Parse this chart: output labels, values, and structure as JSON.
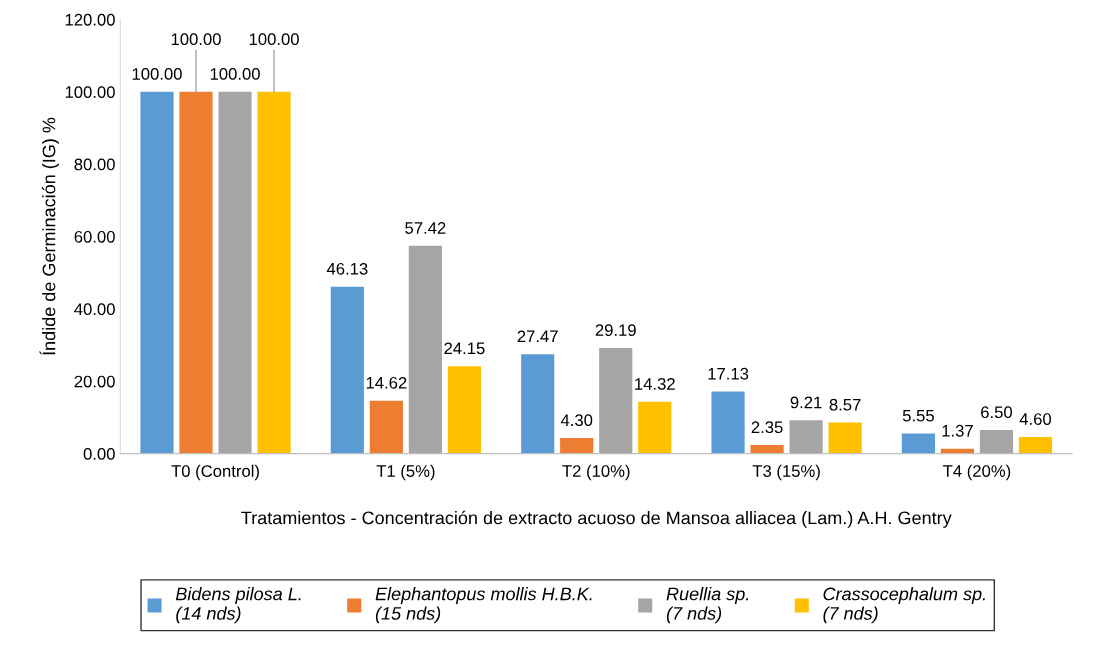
{
  "chart_data": {
    "type": "bar",
    "ylabel": "Índide de Germinación (IG) %",
    "xlabel": "Tratamientos - Concentración de extracto acuoso de Mansoa alliacea (Lam.) A.H. Gentry",
    "categories": [
      "T0 (Control)",
      "T1 (5%)",
      "T2 (10%)",
      "T3 (15%)",
      "T4 (20%)"
    ],
    "series": [
      {
        "name": "Bidens pilosa L.\n(14 nds)",
        "color": "#5b9bd5",
        "values": [
          100.0,
          46.13,
          27.47,
          17.13,
          5.55
        ],
        "value_labels": [
          "100.00",
          "46.13",
          "27.47",
          "17.13",
          "5.55"
        ]
      },
      {
        "name": "Elephantopus mollis H.B.K.\n(15 nds)",
        "color": "#ed7d31",
        "values": [
          100.0,
          14.62,
          4.3,
          2.35,
          1.37
        ],
        "value_labels": [
          "100.00",
          "14.62",
          "4.30",
          "2.35",
          "1.37"
        ]
      },
      {
        "name": "Ruellia sp.\n(7 nds)",
        "color": "#a5a5a5",
        "values": [
          100.0,
          57.42,
          29.19,
          9.21,
          6.5
        ],
        "value_labels": [
          "100.00",
          "57.42",
          "29.19",
          "9.21",
          "6.50"
        ]
      },
      {
        "name": "Crassocephalum sp.\n(7 nds)",
        "color": "#ffc000",
        "values": [
          100.0,
          24.15,
          14.32,
          8.57,
          4.6
        ],
        "value_labels": [
          "100.00",
          "24.15",
          "14.32",
          "8.57",
          "4.60"
        ]
      }
    ],
    "ylim": [
      0,
      120
    ],
    "yticks": [
      {
        "value": 0,
        "label": "0.00"
      },
      {
        "value": 20,
        "label": "20.00"
      },
      {
        "value": 40,
        "label": "40.00"
      },
      {
        "value": 60,
        "label": "60.00"
      },
      {
        "value": 80,
        "label": "80.00"
      },
      {
        "value": 100,
        "label": "100.00"
      },
      {
        "value": 120,
        "label": "120.00"
      }
    ],
    "grid": false,
    "legend": "bottom"
  }
}
